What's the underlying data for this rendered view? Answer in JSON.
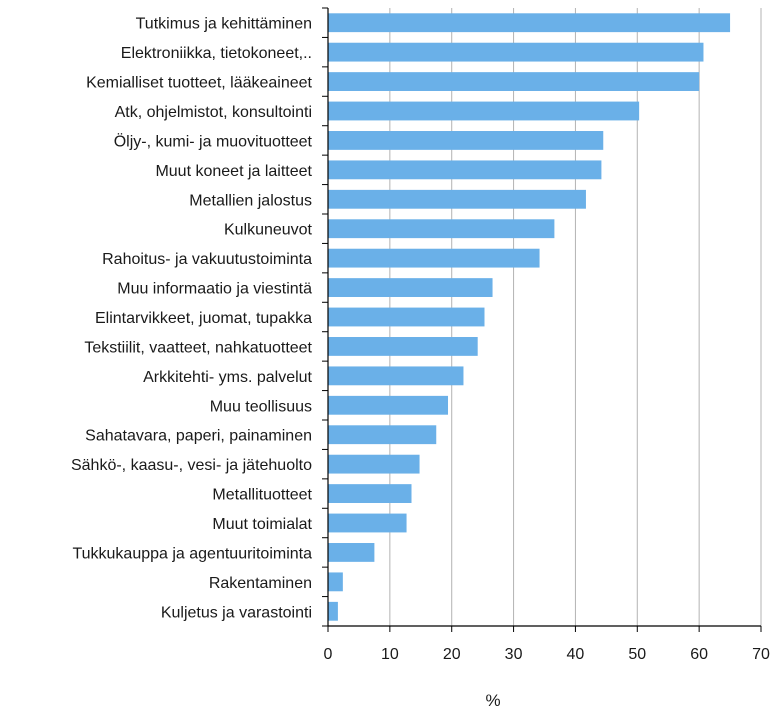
{
  "chart_data": {
    "type": "bar",
    "orientation": "horizontal",
    "title": "",
    "xlabel": "%",
    "ylabel": "",
    "xlim": [
      0,
      70
    ],
    "x_ticks": [
      0,
      10,
      20,
      30,
      40,
      50,
      60,
      70
    ],
    "grid": "vertical",
    "bar_color": "#6ab0e8",
    "categories": [
      "Tutkimus ja kehittäminen",
      "Elektroniikka, tietokoneet,..",
      "Kemialliset tuotteet, lääkeaineet",
      "Atk, ohjelmistot, konsultointi",
      "Öljy-, kumi- ja muovituotteet",
      "Muut koneet ja laitteet",
      "Metallien jalostus",
      "Kulkuneuvot",
      "Rahoitus- ja vakuutustoiminta",
      "Muu informaatio ja viestintä",
      "Elintarvikkeet, juomat, tupakka",
      "Tekstiilit, vaatteet, nahkatuotteet",
      "Arkkitehti- yms. palvelut",
      "Muu teollisuus",
      "Sahatavara, paperi, painaminen",
      "Sähkö-, kaasu-, vesi- ja jätehuolto",
      "Metallituotteet",
      "Muut toimialat",
      "Tukkukauppa ja agentuuritoiminta",
      "Rakentaminen",
      "Kuljetus ja varastointi"
    ],
    "values": [
      65.0,
      60.7,
      60.0,
      50.3,
      44.5,
      44.2,
      41.7,
      36.6,
      34.2,
      26.6,
      25.3,
      24.2,
      21.9,
      19.4,
      17.5,
      14.8,
      13.5,
      12.7,
      7.5,
      2.4,
      1.6
    ]
  }
}
